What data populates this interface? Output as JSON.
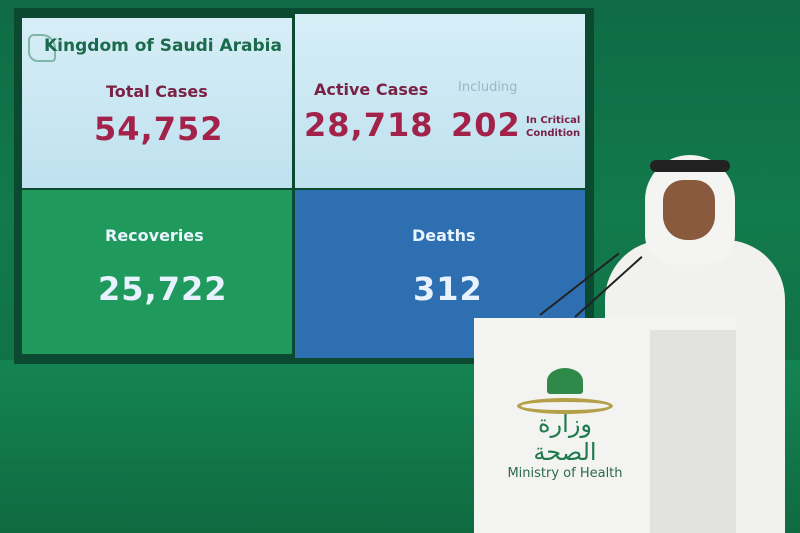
{
  "screen": {
    "title": "Kingdom of Saudi Arabia",
    "total_cases": {
      "label": "Total Cases",
      "value": "54,752"
    },
    "active_cases": {
      "label": "Active Cases",
      "value": "28,718",
      "including": "Including",
      "critical_value": "202",
      "critical_label_1": "In Critical",
      "critical_label_2": "Condition"
    },
    "recoveries": {
      "label": "Recoveries",
      "value": "25,722"
    },
    "deaths": {
      "label": "Deaths",
      "value": "312"
    }
  },
  "podium": {
    "arabic": "وزارة الصحة",
    "english": "Ministry of Health"
  },
  "colors": {
    "background": "#127a4c",
    "panel_light": "#cfe9f4",
    "recoveries": "#1f9a5c",
    "deaths": "#2d6fb0",
    "number_red": "#a3224a"
  }
}
